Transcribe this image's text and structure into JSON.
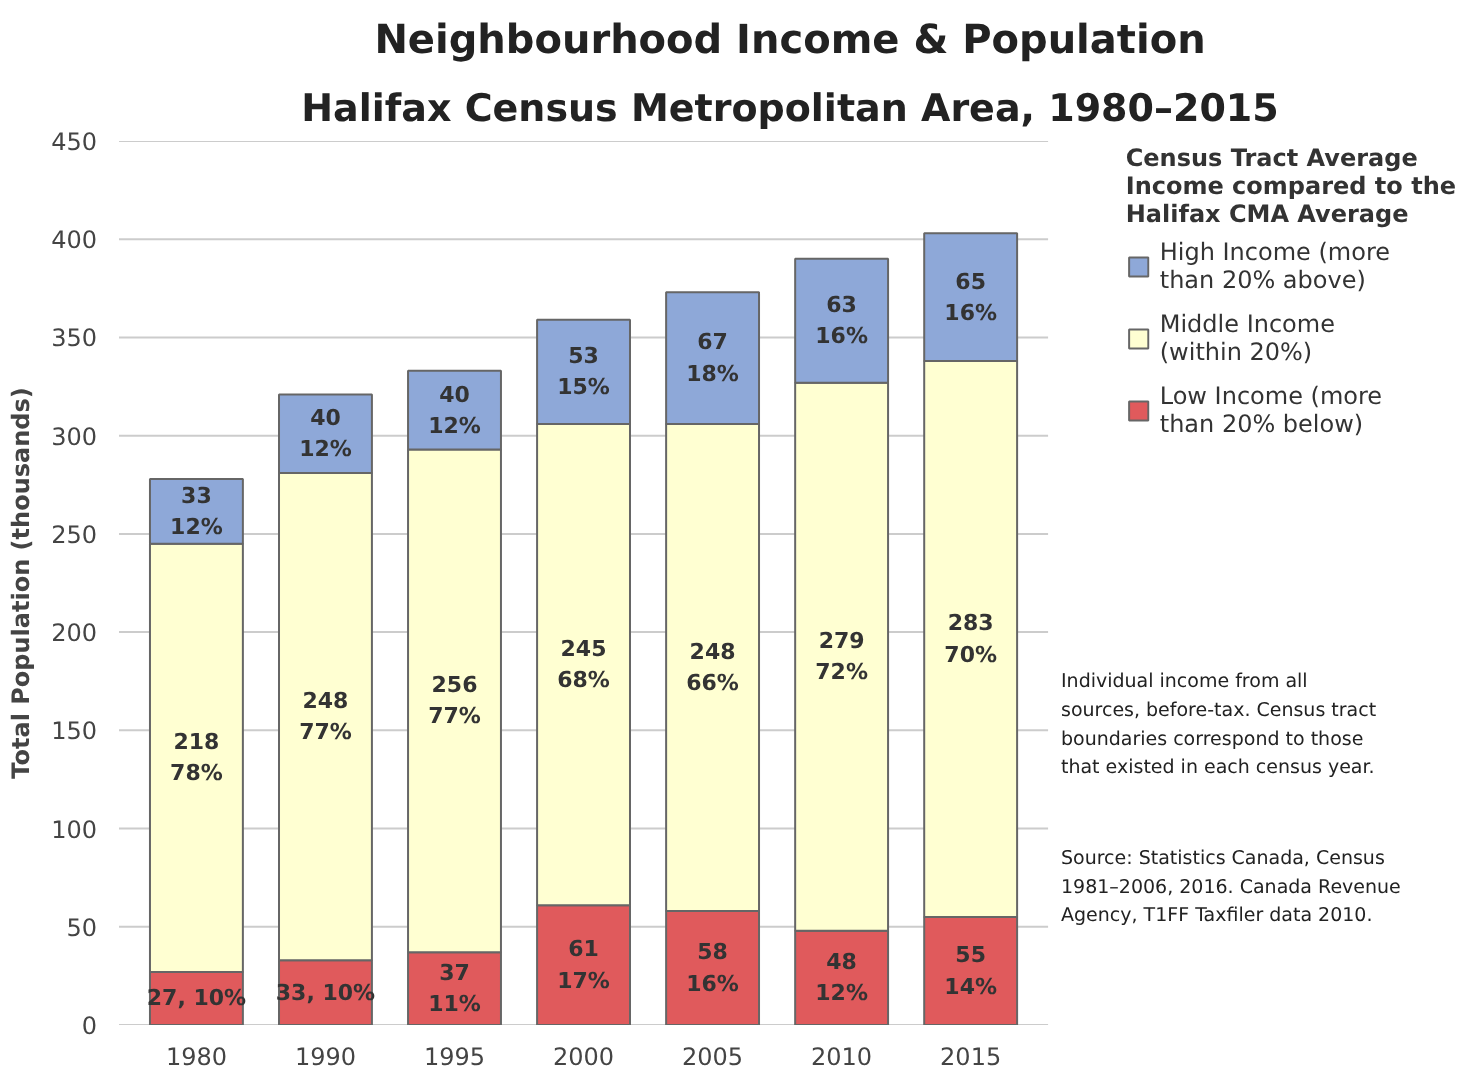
{
  "chart_data": {
    "type": "bar",
    "stacked": true,
    "title": "Neighbourhood Income & Population",
    "subtitle": "Halifax Census Metropolitan Area, 1980–2015",
    "categories": [
      "1980",
      "1990",
      "1995",
      "2000",
      "2005",
      "2010",
      "2015"
    ],
    "series": [
      {
        "name": "Low Income (more than 20% below)",
        "color": "#e05a5c",
        "values": [
          27,
          33,
          37,
          61,
          58,
          48,
          55
        ],
        "value_labels": [
          "27, 10%",
          "33, 10%",
          "37\n11%",
          "61\n17%",
          "58\n16%",
          "48\n12%",
          "55\n14%"
        ]
      },
      {
        "name": "Middle Income (within 20%)",
        "color": "#ffffd2",
        "values": [
          218,
          248,
          256,
          245,
          248,
          279,
          283
        ],
        "value_labels": [
          "218\n78%",
          "248\n77%",
          "256\n77%",
          "245\n68%",
          "248\n66%",
          "279\n72%",
          "283\n70%"
        ]
      },
      {
        "name": "High Income (more than 20% above)",
        "color": "#8ea8d8",
        "values": [
          33,
          40,
          40,
          53,
          67,
          63,
          65
        ],
        "value_labels": [
          "33\n12%",
          "40\n12%",
          "40\n12%",
          "53\n15%",
          "67\n18%",
          "63\n16%",
          "65\n16%"
        ]
      }
    ],
    "ylabel": "Total Population (thousands)",
    "ylim": [
      0,
      450
    ],
    "yticks": [
      0,
      50,
      100,
      150,
      200,
      250,
      300,
      350,
      400,
      450
    ],
    "grid": "y",
    "legend": "top right",
    "legend_title": "Census Tract Average Income compared to the Halifax CMA Average",
    "annotations": [
      "Individual income from all sources, before-tax. Census tract boundaries correspond to those that existed in each census year.",
      "Source: Statistics Canada, Census 1981–2006, 2016. Canada Revenue Agency, T1FF Taxfiler data 2010."
    ]
  }
}
